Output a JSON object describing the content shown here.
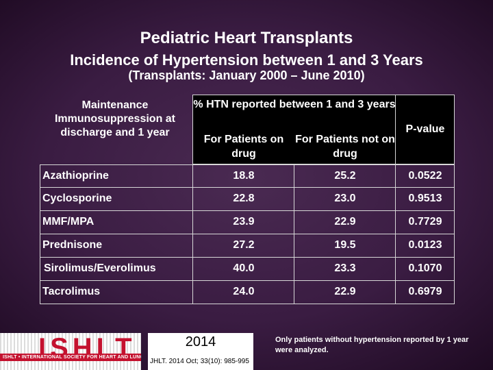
{
  "title": {
    "main": "Pediatric Heart Transplants",
    "subtitle": "Incidence of Hypertension between 1 and 3 Years",
    "period": "(Transplants: January 2000 – June 2010)"
  },
  "table": {
    "row_header": "Maintenance Immunosuppression at discharge and 1 year",
    "span_header": "% HTN reported between 1 and 3 years",
    "col_on_drug": "For Patients on drug",
    "col_not_on_drug": "For Patients not on drug",
    "col_pvalue": "P-value",
    "rows": [
      {
        "drug": "Azathioprine",
        "on_drug": "18.8",
        "not_on_drug": "25.2",
        "p_value": "0.0522"
      },
      {
        "drug": "Cyclosporine",
        "on_drug": "22.8",
        "not_on_drug": "23.0",
        "p_value": "0.9513"
      },
      {
        "drug": "MMF/MPA",
        "on_drug": "23.9",
        "not_on_drug": "22.9",
        "p_value": "0.7729"
      },
      {
        "drug": "Prednisone",
        "on_drug": "27.2",
        "not_on_drug": "19.5",
        "p_value": "0.0123"
      },
      {
        "drug": "Sirolimus/Everolimus",
        "on_drug": "40.0",
        "not_on_drug": "23.3",
        "p_value": "0.1070"
      },
      {
        "drug": "Tacrolimus",
        "on_drug": "24.0",
        "not_on_drug": "22.9",
        "p_value": "0.6979"
      }
    ]
  },
  "footer": {
    "logo_text": "ISHLT",
    "logo_tagline": "ISHLT • INTERNATIONAL SOCIETY FOR HEART AND LUNG TRANSPLANTATION",
    "year": "2014",
    "citation": "JHLT. 2014 Oct; 33(10): 985-995",
    "note": "Only patients without hypertension reported by 1 year were analyzed."
  },
  "colors": {
    "background": "#3a1c42",
    "text": "#ffffff",
    "logo_red": "#c4122f"
  }
}
